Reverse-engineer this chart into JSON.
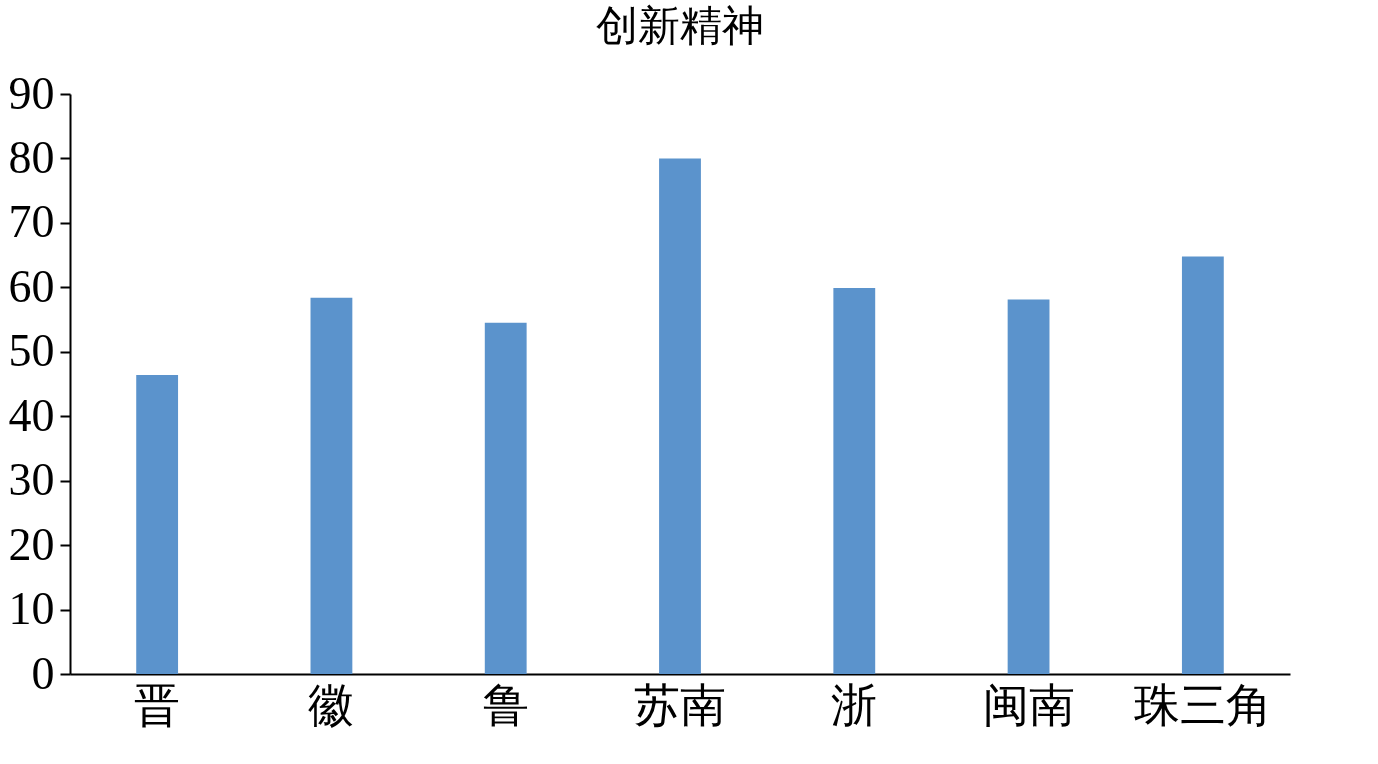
{
  "chart_data": {
    "type": "bar",
    "title": "创新精神",
    "categories": [
      "晋",
      "徽",
      "鲁",
      "苏南",
      "浙",
      "闽南",
      "珠三角"
    ],
    "values": [
      46.4,
      58.4,
      54.5,
      80.0,
      59.9,
      58.1,
      64.8
    ],
    "color": "#5b93cc",
    "ylim": [
      0,
      90
    ],
    "yticks": [
      0,
      10,
      20,
      30,
      40,
      50,
      60,
      70,
      80,
      90
    ],
    "grid": false
  }
}
